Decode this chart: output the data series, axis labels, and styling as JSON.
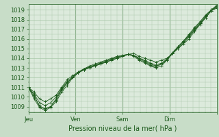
{
  "title": "Pression niveau de la mer( hPa )",
  "ylabel_values": [
    1009,
    1010,
    1011,
    1012,
    1013,
    1014,
    1015,
    1016,
    1017,
    1018,
    1019
  ],
  "ylim": [
    1008.4,
    1019.6
  ],
  "xlim": [
    0,
    96
  ],
  "xtick_positions": [
    0,
    24,
    48,
    72,
    96
  ],
  "xtick_labels": [
    "Jeu",
    "Ven",
    "Sam",
    "Dim",
    ""
  ],
  "bg_color": "#c8ddc8",
  "plot_bg_color": "#dceadc",
  "line_color": "#1e5c1e",
  "grid_color": "#a8c8a8",
  "series": [
    [
      1011.0,
      1010.2,
      1009.0,
      1008.8,
      1009.0,
      1009.8,
      1010.8,
      1011.5,
      1012.0,
      1012.5,
      1012.8,
      1013.0,
      1013.2,
      1013.4,
      1013.6,
      1013.8,
      1014.0,
      1014.2,
      1014.4,
      1014.5,
      1014.2,
      1014.0,
      1013.8,
      1013.6,
      1013.8,
      1014.0,
      1014.5,
      1015.0,
      1015.5,
      1016.0,
      1016.8,
      1017.5,
      1018.2,
      1019.0,
      1019.3
    ],
    [
      1011.0,
      1009.8,
      1008.9,
      1008.6,
      1008.9,
      1009.5,
      1010.5,
      1011.2,
      1012.0,
      1012.5,
      1012.8,
      1013.0,
      1013.2,
      1013.4,
      1013.6,
      1013.8,
      1014.0,
      1014.2,
      1014.4,
      1014.2,
      1013.8,
      1013.5,
      1013.2,
      1013.0,
      1013.2,
      1013.8,
      1014.5,
      1015.2,
      1015.8,
      1016.5,
      1017.2,
      1017.8,
      1018.5,
      1019.0,
      1019.5
    ],
    [
      1011.0,
      1010.5,
      1009.8,
      1009.5,
      1009.8,
      1010.2,
      1011.0,
      1011.8,
      1012.2,
      1012.6,
      1012.9,
      1013.2,
      1013.4,
      1013.6,
      1013.8,
      1014.0,
      1014.2,
      1014.3,
      1014.4,
      1014.3,
      1014.0,
      1013.8,
      1013.5,
      1013.3,
      1013.5,
      1013.9,
      1014.5,
      1015.0,
      1015.6,
      1016.2,
      1016.9,
      1017.6,
      1018.2,
      1018.9,
      1019.2
    ],
    [
      1011.0,
      1010.0,
      1009.1,
      1008.7,
      1009.0,
      1009.7,
      1010.7,
      1011.4,
      1012.1,
      1012.5,
      1012.8,
      1013.1,
      1013.3,
      1013.5,
      1013.7,
      1013.9,
      1014.1,
      1014.3,
      1014.4,
      1014.3,
      1013.9,
      1013.6,
      1013.3,
      1013.1,
      1013.4,
      1013.9,
      1014.6,
      1015.2,
      1015.8,
      1016.4,
      1017.1,
      1017.7,
      1018.4,
      1019.0,
      1019.4
    ],
    [
      1011.0,
      1010.3,
      1009.4,
      1009.1,
      1009.4,
      1010.0,
      1010.9,
      1011.6,
      1012.1,
      1012.5,
      1012.9,
      1013.1,
      1013.3,
      1013.5,
      1013.7,
      1013.9,
      1014.1,
      1014.2,
      1014.4,
      1014.3,
      1014.0,
      1013.7,
      1013.4,
      1013.2,
      1013.4,
      1013.8,
      1014.5,
      1015.1,
      1015.7,
      1016.3,
      1017.0,
      1017.6,
      1018.3,
      1018.9,
      1019.3
    ]
  ]
}
